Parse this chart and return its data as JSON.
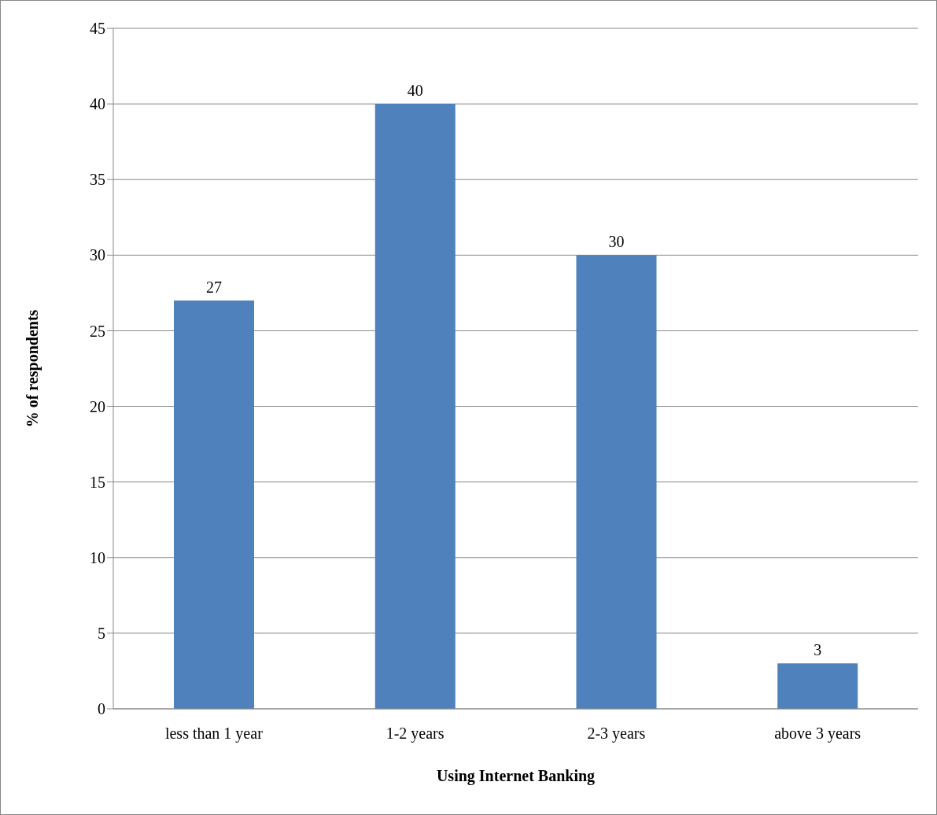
{
  "chart_data": {
    "type": "bar",
    "xlabel": "Using Internet Banking",
    "ylabel": "% of respondents",
    "categories": [
      "less than 1 year",
      "1-2 years",
      "2-3 years",
      "above 3 years"
    ],
    "values": [
      27,
      40,
      30,
      3
    ],
    "color": "#4f81bd",
    "ylim": [
      0,
      45
    ],
    "yticks": [
      0,
      5,
      10,
      15,
      20,
      25,
      30,
      35,
      40,
      45
    ],
    "grid": "y",
    "data_labels": true
  }
}
